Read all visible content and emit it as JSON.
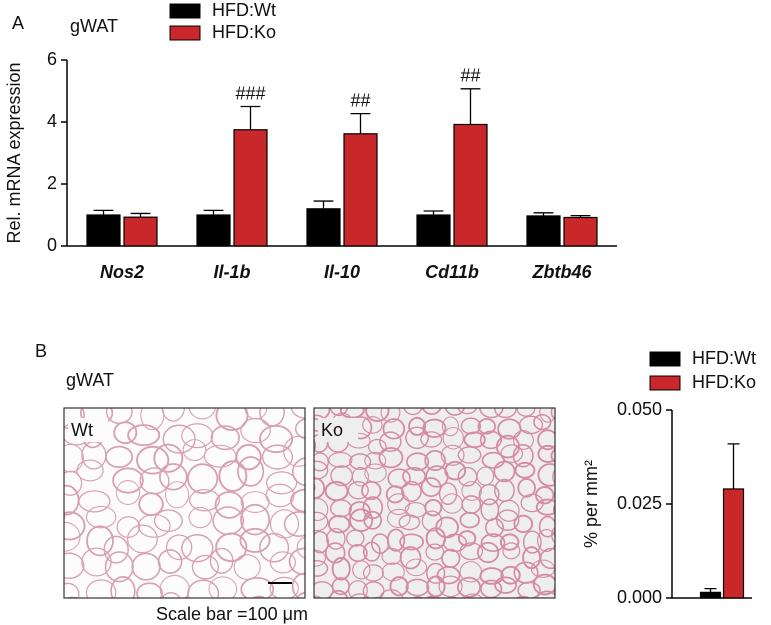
{
  "chart_data": [
    {
      "type": "bar",
      "panel": "A",
      "title": "gWAT",
      "y_label": "Rel. mRNA expression",
      "categories": [
        "Nos2",
        "Il-1b",
        "Il-10",
        "Cd11b",
        "Zbtb46"
      ],
      "series": [
        {
          "name": "HFD:Wt",
          "color": "#000000",
          "values": [
            1.0,
            1.0,
            1.2,
            1.0,
            0.97
          ],
          "errors": [
            0.15,
            0.15,
            0.25,
            0.13,
            0.1
          ],
          "annotations": [
            null,
            null,
            null,
            null,
            null
          ]
        },
        {
          "name": "HFD:Ko",
          "color": "#c8282a",
          "values": [
            0.93,
            3.75,
            3.62,
            3.92,
            0.92
          ],
          "errors": [
            0.12,
            0.75,
            0.65,
            1.15,
            0.06
          ],
          "annotations": [
            null,
            "###",
            "##",
            "##",
            null
          ]
        }
      ],
      "ylim": [
        0,
        6
      ],
      "yticks": [
        0,
        2,
        4,
        6
      ],
      "grid": false
    },
    {
      "type": "bar",
      "panel": "B",
      "title": "gWAT",
      "image_labels": [
        "Wt",
        "Ko"
      ],
      "scale_bar_label": "Scale bar =100 μm",
      "y_label": "% per mm²",
      "categories": [
        null
      ],
      "series": [
        {
          "name": "HFD:Wt",
          "color": "#000000",
          "values": [
            0.0015
          ],
          "errors": [
            0.001
          ],
          "annotations": [
            null
          ]
        },
        {
          "name": "HFD:Ko",
          "color": "#c8282a",
          "values": [
            0.029
          ],
          "errors": [
            0.012
          ],
          "annotations": [
            null
          ]
        }
      ],
      "ylim": [
        0,
        0.05
      ],
      "yticks": [
        {
          "value": 0,
          "label": "0.000"
        },
        {
          "value": 0.025,
          "label": "0.025"
        },
        {
          "value": 0.05,
          "label": "0.050"
        }
      ],
      "grid": false
    }
  ]
}
